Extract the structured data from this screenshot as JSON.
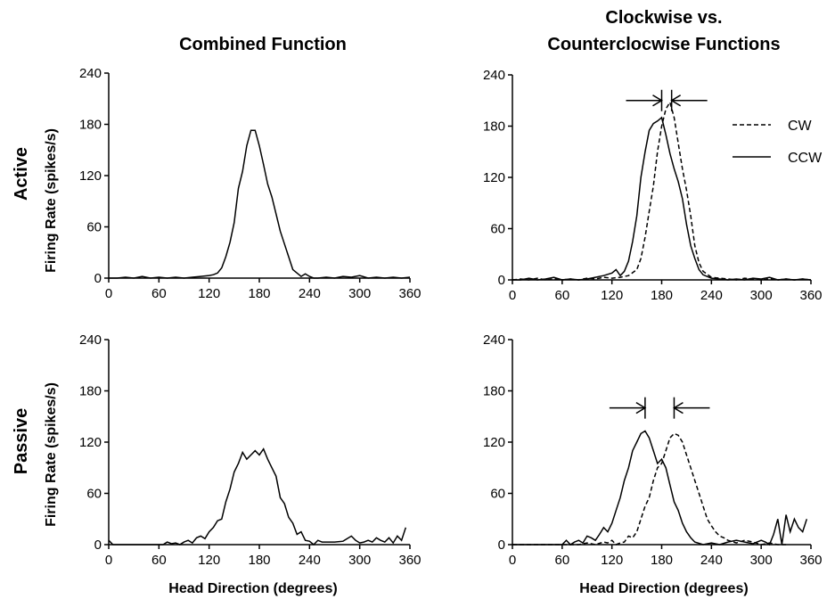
{
  "titles": {
    "combined": "Combined Function",
    "cw_ccw_line1": "Clockwise vs.",
    "cw_ccw_line2": "Counterclocwise Functions"
  },
  "rows": {
    "active": "Active",
    "passive": "Passive"
  },
  "ylabel": "Firing Rate (spikes/s)",
  "xlabel": "Head Direction (degrees)",
  "legend": {
    "cw": "CW",
    "ccw": "CCW"
  },
  "chart_data": [
    {
      "type": "line",
      "panel": "active-combined",
      "xlim": [
        0,
        360
      ],
      "ylim": [
        0,
        240
      ],
      "xticks": [
        "0",
        "60",
        "120",
        "180",
        "240",
        "300",
        "360"
      ],
      "yticks": [
        "0",
        "60",
        "120",
        "180",
        "240"
      ],
      "series": [
        {
          "style": "solid",
          "x": [
            0,
            10,
            20,
            30,
            40,
            50,
            60,
            70,
            80,
            90,
            100,
            110,
            120,
            125,
            130,
            135,
            140,
            145,
            150,
            155,
            160,
            165,
            170,
            175,
            180,
            185,
            190,
            195,
            200,
            205,
            210,
            215,
            220,
            225,
            230,
            235,
            240,
            245,
            250,
            260,
            270,
            280,
            290,
            300,
            310,
            320,
            330,
            340,
            350,
            360
          ],
          "y": [
            0,
            0,
            1,
            0,
            2,
            0,
            1,
            0,
            1,
            0,
            1,
            2,
            3,
            4,
            6,
            12,
            25,
            42,
            65,
            105,
            125,
            155,
            173,
            173,
            155,
            133,
            110,
            95,
            75,
            55,
            40,
            25,
            10,
            6,
            2,
            5,
            2,
            0,
            0,
            1,
            0,
            2,
            1,
            3,
            0,
            1,
            0,
            1,
            0,
            1
          ]
        }
      ]
    },
    {
      "type": "line",
      "panel": "active-cw-ccw",
      "xlim": [
        0,
        360
      ],
      "ylim": [
        0,
        240
      ],
      "xticks": [
        "0",
        "60",
        "120",
        "180",
        "240",
        "300",
        "360"
      ],
      "yticks": [
        "0",
        "60",
        "120",
        "180",
        "240"
      ],
      "annotation": "arrows converging on a gap of about 180-192 degrees near the peaks",
      "series": [
        {
          "name": "CW",
          "style": "dashed",
          "x": [
            0,
            10,
            20,
            30,
            40,
            50,
            60,
            70,
            80,
            90,
            100,
            110,
            120,
            130,
            140,
            150,
            155,
            160,
            165,
            170,
            175,
            180,
            185,
            190,
            195,
            200,
            205,
            210,
            215,
            220,
            225,
            230,
            240,
            250,
            260,
            270,
            280,
            290,
            300,
            310,
            320,
            330,
            340,
            350,
            360
          ],
          "y": [
            0,
            1,
            0,
            2,
            0,
            1,
            0,
            1,
            0,
            2,
            1,
            3,
            2,
            3,
            5,
            12,
            25,
            50,
            80,
            110,
            150,
            180,
            200,
            208,
            190,
            160,
            130,
            105,
            75,
            40,
            20,
            10,
            3,
            2,
            1,
            0,
            2,
            1,
            0,
            1,
            0,
            1,
            0,
            1,
            0
          ]
        },
        {
          "name": "CCW",
          "style": "solid",
          "x": [
            0,
            10,
            20,
            30,
            40,
            50,
            60,
            70,
            80,
            90,
            100,
            110,
            120,
            125,
            130,
            135,
            140,
            145,
            150,
            155,
            160,
            165,
            170,
            175,
            180,
            185,
            190,
            195,
            200,
            205,
            210,
            215,
            220,
            225,
            230,
            240,
            250,
            260,
            270,
            280,
            290,
            300,
            310,
            320,
            330,
            340,
            350,
            360
          ],
          "y": [
            0,
            0,
            2,
            0,
            1,
            3,
            0,
            1,
            0,
            1,
            3,
            5,
            8,
            12,
            5,
            10,
            22,
            45,
            75,
            120,
            150,
            175,
            183,
            186,
            190,
            170,
            148,
            130,
            115,
            95,
            65,
            40,
            25,
            12,
            6,
            2,
            1,
            0,
            1,
            0,
            2,
            1,
            3,
            0,
            1,
            0,
            1,
            0
          ]
        }
      ]
    },
    {
      "type": "line",
      "panel": "passive-combined",
      "xlim": [
        0,
        360
      ],
      "ylim": [
        0,
        240
      ],
      "xticks": [
        "0",
        "60",
        "120",
        "180",
        "240",
        "300",
        "360"
      ],
      "yticks": [
        "0",
        "60",
        "120",
        "180",
        "240"
      ],
      "series": [
        {
          "style": "solid",
          "x": [
            0,
            5,
            10,
            20,
            30,
            40,
            50,
            60,
            65,
            70,
            75,
            80,
            85,
            90,
            95,
            100,
            105,
            110,
            115,
            120,
            125,
            130,
            135,
            140,
            145,
            150,
            155,
            160,
            165,
            170,
            175,
            180,
            185,
            190,
            195,
            200,
            205,
            210,
            215,
            220,
            225,
            230,
            235,
            240,
            245,
            250,
            255,
            260,
            270,
            280,
            290,
            295,
            300,
            305,
            310,
            315,
            320,
            325,
            330,
            335,
            340,
            345,
            350,
            355
          ],
          "y": [
            5,
            0,
            0,
            0,
            0,
            0,
            0,
            0,
            0,
            3,
            1,
            2,
            0,
            3,
            5,
            2,
            8,
            10,
            7,
            15,
            20,
            28,
            30,
            50,
            65,
            85,
            95,
            108,
            100,
            105,
            110,
            105,
            112,
            100,
            90,
            80,
            55,
            48,
            32,
            25,
            12,
            15,
            5,
            4,
            0,
            5,
            3,
            3,
            3,
            4,
            10,
            5,
            2,
            3,
            5,
            3,
            8,
            5,
            3,
            8,
            2,
            10,
            5,
            20
          ]
        }
      ]
    },
    {
      "type": "line",
      "panel": "passive-cw-ccw",
      "xlim": [
        0,
        360
      ],
      "ylim": [
        0,
        240
      ],
      "xticks": [
        "0",
        "60",
        "120",
        "180",
        "240",
        "300",
        "360"
      ],
      "yticks": [
        "0",
        "60",
        "120",
        "180",
        "240"
      ],
      "annotation": "arrows converging on a gap of about 160-195 degrees between the peaks",
      "series": [
        {
          "name": "CW",
          "style": "dashed",
          "x": [
            0,
            20,
            40,
            60,
            70,
            80,
            90,
            100,
            110,
            115,
            120,
            125,
            130,
            135,
            140,
            145,
            150,
            155,
            160,
            165,
            170,
            175,
            180,
            185,
            190,
            195,
            200,
            205,
            210,
            215,
            220,
            225,
            230,
            235,
            240,
            245,
            250,
            255,
            260,
            270,
            280,
            290,
            300,
            310,
            320,
            330
          ],
          "y": [
            0,
            0,
            0,
            0,
            0,
            0,
            2,
            0,
            3,
            2,
            5,
            0,
            2,
            3,
            10,
            8,
            15,
            30,
            45,
            55,
            75,
            90,
            95,
            110,
            125,
            130,
            128,
            120,
            105,
            90,
            75,
            60,
            45,
            30,
            22,
            15,
            10,
            8,
            5,
            2,
            5,
            3,
            0,
            2,
            0,
            0
          ]
        },
        {
          "name": "CCW",
          "style": "solid",
          "x": [
            0,
            20,
            40,
            60,
            65,
            70,
            75,
            80,
            85,
            90,
            95,
            100,
            105,
            110,
            115,
            120,
            125,
            130,
            135,
            140,
            145,
            150,
            155,
            160,
            165,
            170,
            175,
            180,
            185,
            190,
            195,
            200,
            205,
            210,
            215,
            220,
            230,
            240,
            250,
            260,
            270,
            280,
            290,
            300,
            305,
            310,
            315,
            320,
            325,
            330,
            335,
            340,
            345,
            350,
            355
          ],
          "y": [
            0,
            0,
            0,
            0,
            5,
            0,
            3,
            5,
            2,
            10,
            8,
            5,
            12,
            20,
            15,
            25,
            40,
            55,
            75,
            90,
            110,
            120,
            130,
            133,
            125,
            110,
            95,
            100,
            90,
            70,
            50,
            40,
            25,
            15,
            8,
            3,
            0,
            2,
            0,
            3,
            5,
            3,
            1,
            5,
            3,
            0,
            12,
            30,
            0,
            35,
            15,
            30,
            20,
            15,
            30
          ]
        }
      ]
    }
  ]
}
